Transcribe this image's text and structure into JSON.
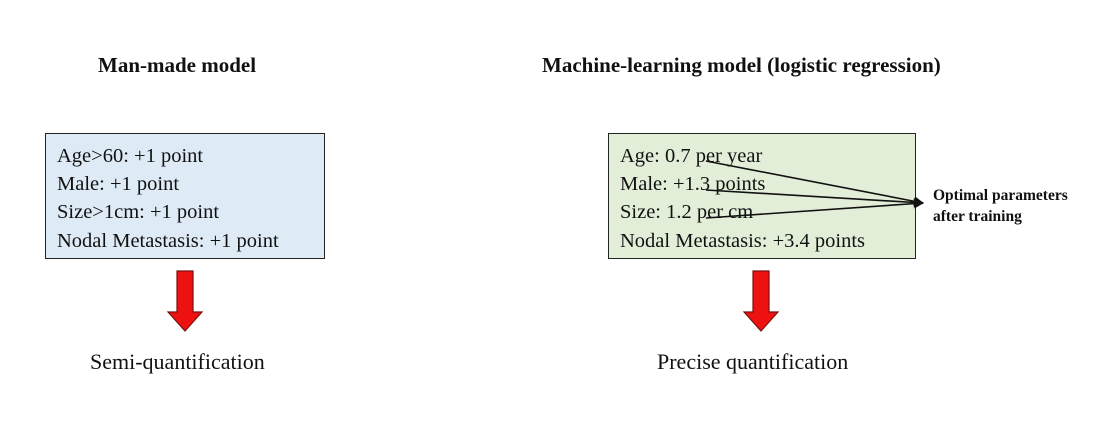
{
  "left_panel": {
    "title": "Man-made model",
    "lines": [
      "Age>60: +1 point",
      "Male: +1 point",
      "Size>1cm: +1 point",
      "Nodal Metastasis: +1 point"
    ],
    "result": "Semi-quantification",
    "box_color": "#deeaf5"
  },
  "right_panel": {
    "title": "Machine-learning model (logistic regression)",
    "lines": [
      "Age: 0.7 per year",
      "Male: +1.3 points",
      "Size: 1.2 per cm",
      "Nodal Metastasis: +3.4 points"
    ],
    "result": "Precise quantification",
    "box_color": "#e3eed9"
  },
  "annotation": {
    "lines": [
      "Optimal parameters",
      "after training"
    ]
  },
  "colors": {
    "arrow_fill": "#ee1111",
    "arrow_stroke": "#7a1010",
    "border": "#222222"
  },
  "icons": {
    "down_arrow": "down-arrow-icon"
  }
}
